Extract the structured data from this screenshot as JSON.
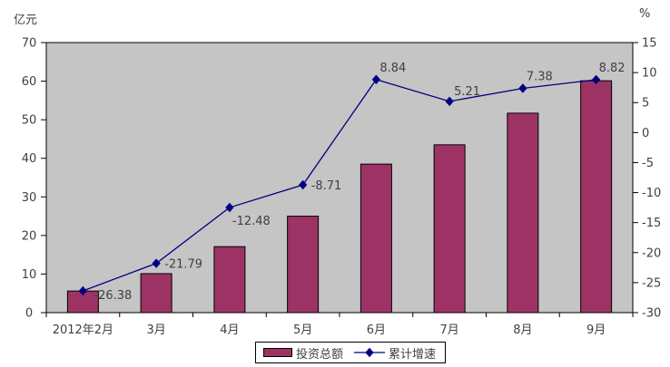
{
  "chart_data": {
    "type": "bar+line",
    "title": "",
    "categories": [
      "2012年2月",
      "3月",
      "4月",
      "5月",
      "6月",
      "7月",
      "8月",
      "9月"
    ],
    "series": [
      {
        "name": "投资总额",
        "chart": "bar",
        "axis": "left",
        "values": [
          5.6,
          10.1,
          17.1,
          25.0,
          38.5,
          43.5,
          51.7,
          60.1
        ],
        "color": "#9d3365",
        "border_color": "#000000"
      },
      {
        "name": "累计增速",
        "chart": "line",
        "axis": "right",
        "values": [
          -26.38,
          -21.79,
          -12.48,
          -8.71,
          8.84,
          5.21,
          7.38,
          8.82
        ],
        "point_labels": [
          "-26.38",
          "-21.79",
          "-12.48",
          "-8.71",
          "8.84",
          "5.21",
          "7.38",
          "8.82"
        ],
        "color": "#000080",
        "marker": "diamond"
      }
    ],
    "left_axis": {
      "title": "亿元",
      "min": 0,
      "max": 70,
      "step": 10,
      "ticks": [
        0,
        10,
        20,
        30,
        40,
        50,
        60,
        70
      ]
    },
    "right_axis": {
      "title": "%",
      "min": -30,
      "max": 15,
      "step": 5,
      "ticks": [
        -30,
        -25,
        -20,
        -15,
        -10,
        -5,
        0,
        5,
        10,
        15
      ]
    },
    "legend_position": "bottom",
    "grid": false,
    "plot_background": "#c5c5c5",
    "background": "#ffffff",
    "text_color": "#404040"
  }
}
